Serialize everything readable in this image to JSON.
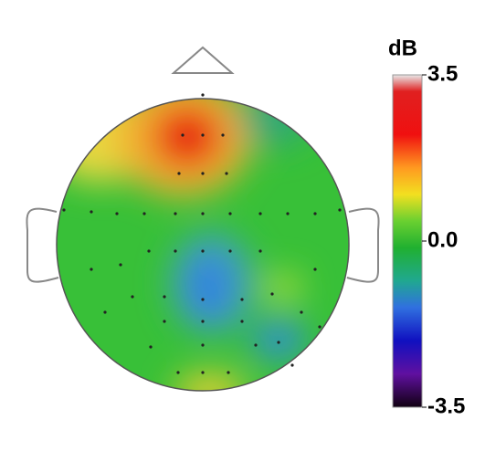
{
  "chart_data": {
    "type": "topomap",
    "colorbar_label": "dB",
    "clim": [
      -3.5,
      3.5
    ],
    "cticks": [
      -3.5,
      {
        "value": 0,
        "label": "0.0"
      },
      3.5
    ]
  }
}
